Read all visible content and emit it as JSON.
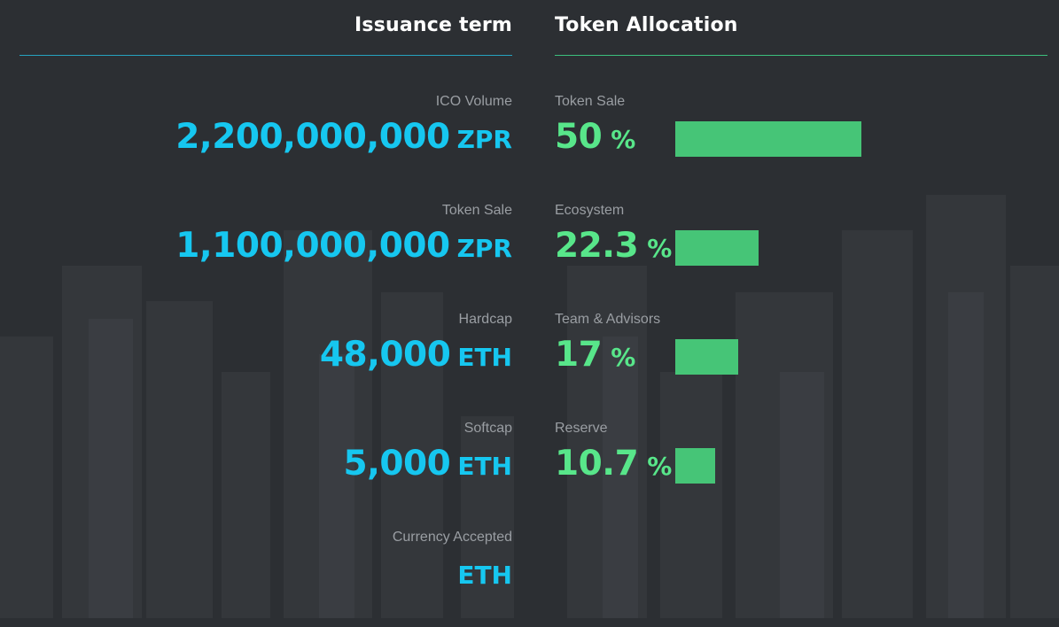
{
  "issuance": {
    "title": "Issuance term",
    "items": [
      {
        "label": "ICO Volume",
        "value": "2,200,000,000",
        "unit": "ZPR"
      },
      {
        "label": "Token Sale",
        "value": "1,100,000,000",
        "unit": "ZPR"
      },
      {
        "label": "Hardcap",
        "value": "48,000",
        "unit": "ETH"
      },
      {
        "label": "Softcap",
        "value": "5,000",
        "unit": "ETH"
      },
      {
        "label": "Currency Accepted",
        "value": "",
        "unit": "ETH"
      }
    ]
  },
  "allocation": {
    "title": "Token Allocation",
    "items": [
      {
        "label": "Token Sale",
        "value": "50",
        "unit": "%",
        "percent": 50
      },
      {
        "label": "Ecosystem",
        "value": "22.3",
        "unit": "%",
        "percent": 22.3
      },
      {
        "label": "Team & Advisors",
        "value": "17",
        "unit": "%",
        "percent": 17
      },
      {
        "label": "Reserve",
        "value": "10.7",
        "unit": "%",
        "percent": 10.7
      }
    ]
  },
  "colors": {
    "background": "#2c2f33",
    "issuance_accent": "#16c7f0",
    "allocation_accent": "#58e68a",
    "bar": "#46c577",
    "issuance_rule": "#26a3bf",
    "allocation_rule": "#3bbf7d"
  }
}
